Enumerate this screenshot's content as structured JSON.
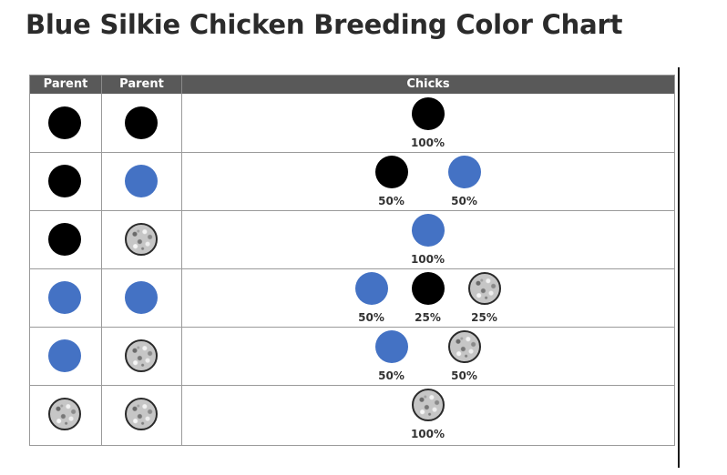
{
  "title": "Blue Silkie Chicken Breeding Color Chart",
  "table": {
    "headers": {
      "parent1": "Parent",
      "parent2": "Parent",
      "chicks": "Chicks"
    },
    "colors": {
      "black": "#000000",
      "blue": "#4472c4",
      "splash": "#c6c6c6"
    },
    "rows": [
      {
        "parent1": "black",
        "parent2": "black",
        "chicks": [
          {
            "color": "black",
            "percent": "100%"
          }
        ]
      },
      {
        "parent1": "black",
        "parent2": "blue",
        "chicks": [
          {
            "color": "black",
            "percent": "50%"
          },
          {
            "color": "blue",
            "percent": "50%"
          }
        ]
      },
      {
        "parent1": "black",
        "parent2": "splash",
        "chicks": [
          {
            "color": "blue",
            "percent": "100%"
          }
        ]
      },
      {
        "parent1": "blue",
        "parent2": "blue",
        "chicks": [
          {
            "color": "blue",
            "percent": "50%"
          },
          {
            "color": "black",
            "percent": "25%"
          },
          {
            "color": "splash",
            "percent": "25%"
          }
        ]
      },
      {
        "parent1": "blue",
        "parent2": "splash",
        "chicks": [
          {
            "color": "blue",
            "percent": "50%"
          },
          {
            "color": "splash",
            "percent": "50%"
          }
        ]
      },
      {
        "parent1": "splash",
        "parent2": "splash",
        "chicks": [
          {
            "color": "splash",
            "percent": "100%"
          }
        ]
      }
    ]
  }
}
